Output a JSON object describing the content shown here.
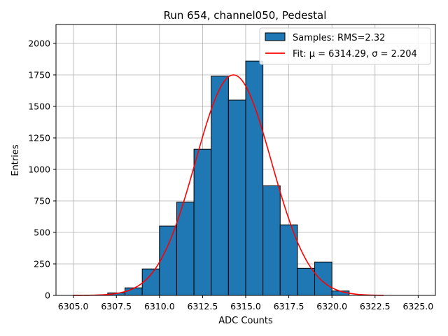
{
  "chart_data": {
    "type": "bar",
    "title": "Run 654, channel050, Pedestal",
    "xlabel": "ADC Counts",
    "ylabel": "Entries",
    "xlim": [
      6304.0,
      6326.0
    ],
    "ylim": [
      0,
      2150
    ],
    "xticks": [
      6305.0,
      6307.5,
      6310.0,
      6312.5,
      6315.0,
      6317.5,
      6320.0,
      6322.5,
      6325.0
    ],
    "xtick_labels": [
      "6305.0",
      "6307.5",
      "6310.0",
      "6312.5",
      "6315.0",
      "6317.5",
      "6320.0",
      "6322.5",
      "6325.0"
    ],
    "yticks": [
      0,
      250,
      500,
      750,
      1000,
      1250,
      1500,
      1750,
      2000
    ],
    "ytick_labels": [
      "0",
      "250",
      "500",
      "750",
      "1000",
      "1250",
      "1500",
      "1750",
      "2000"
    ],
    "grid": true,
    "legend_position": "top-right",
    "bar_color": "#1f77b4",
    "fit_color": "#ff0000",
    "histogram": {
      "name": "Samples: RMS=2.32",
      "bin_edges": [
        6307,
        6308,
        6309,
        6310,
        6311,
        6312,
        6313,
        6314,
        6315,
        6316,
        6317,
        6318,
        6319,
        6320,
        6321
      ],
      "counts": [
        20,
        60,
        210,
        550,
        740,
        1160,
        1740,
        1550,
        1860,
        870,
        560,
        215,
        265,
        35
      ]
    },
    "fit": {
      "name": "Fit: μ = 6314.29, σ = 2.204",
      "mu": 6314.29,
      "sigma": 2.204,
      "amplitude": 1750,
      "x_range": [
        6305.0,
        6323.0
      ]
    }
  }
}
